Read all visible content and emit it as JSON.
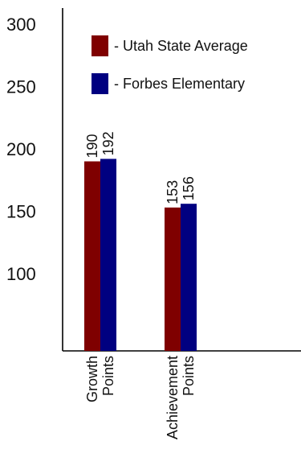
{
  "chart_data": {
    "type": "bar",
    "title": "",
    "xlabel": "",
    "ylabel": "",
    "ylim": [
      50,
      300
    ],
    "yticks": [
      300,
      250,
      200,
      150,
      100
    ],
    "grid": false,
    "legend_placement": "top-right",
    "categories": [
      {
        "lines": [
          "Growth",
          "Points"
        ]
      },
      {
        "lines": [
          "Achievement",
          "Points"
        ]
      }
    ],
    "series": [
      {
        "name": "- Utah State Average",
        "color": "#7f0000",
        "values": [
          190,
          153
        ]
      },
      {
        "name": "- Forbes Elementary",
        "color": "#000080",
        "values": [
          192,
          156
        ]
      }
    ]
  }
}
